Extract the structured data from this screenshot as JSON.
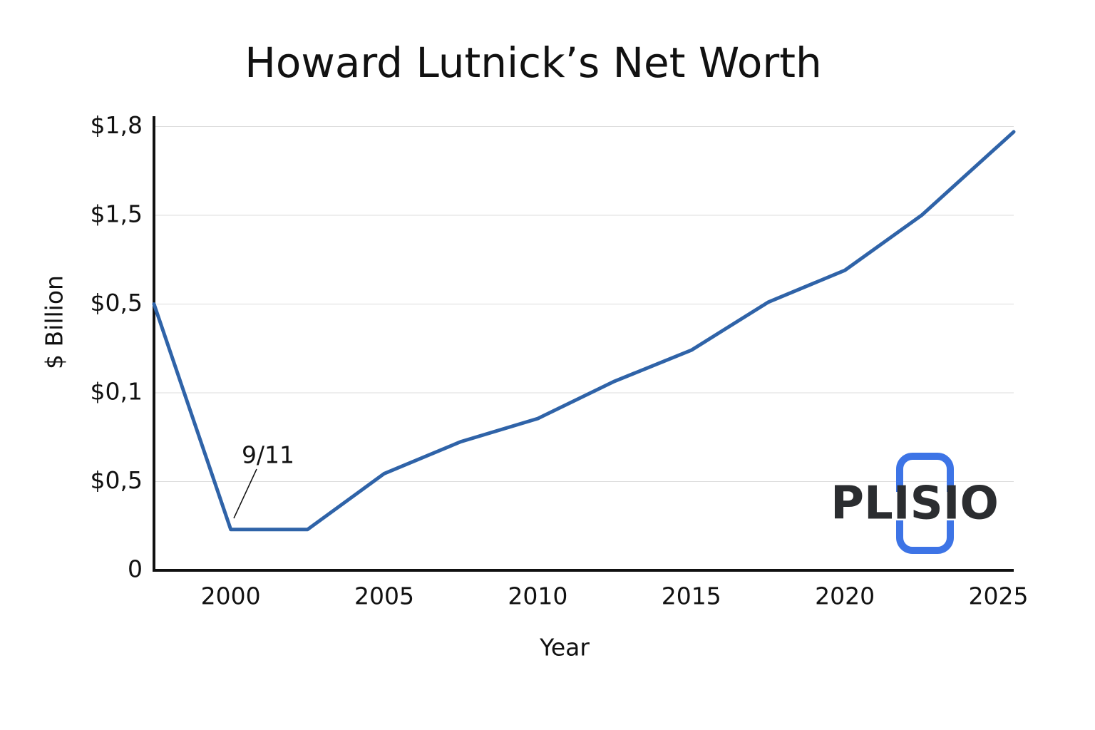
{
  "chart_data": {
    "type": "line",
    "title": "Howard Lutnick’s Net Worth",
    "x_label": "Year",
    "y_label": "$ Billion",
    "x": [
      1997.5,
      2000,
      2002.5,
      2005,
      2007.5,
      2010,
      2012.5,
      2015,
      2017.5,
      2020,
      2022.5,
      2025.5
    ],
    "series": [
      {
        "name": "Net worth",
        "color": "#2f63a8",
        "values": [
          3.0,
          0.46,
          0.46,
          1.09,
          1.45,
          1.71,
          2.13,
          2.48,
          3.02,
          3.38,
          4.0,
          4.94
        ]
      }
    ],
    "xlim": [
      1997.5,
      2025.5
    ],
    "xticks": [
      2000,
      2005,
      2010,
      2015,
      2020,
      2025
    ],
    "ylim": [
      0,
      5.1
    ],
    "yticks": [
      0,
      {
        "value": 1,
        "label": "$0,5"
      },
      {
        "value": 2,
        "label": "$0,1"
      },
      {
        "value": 3,
        "label": "$0,5"
      },
      {
        "value": 4,
        "label": "$1,5"
      },
      {
        "value": 5,
        "label": "$1,8"
      }
    ],
    "grid": true,
    "annotation": "9/11",
    "logo": "PLISIO"
  }
}
